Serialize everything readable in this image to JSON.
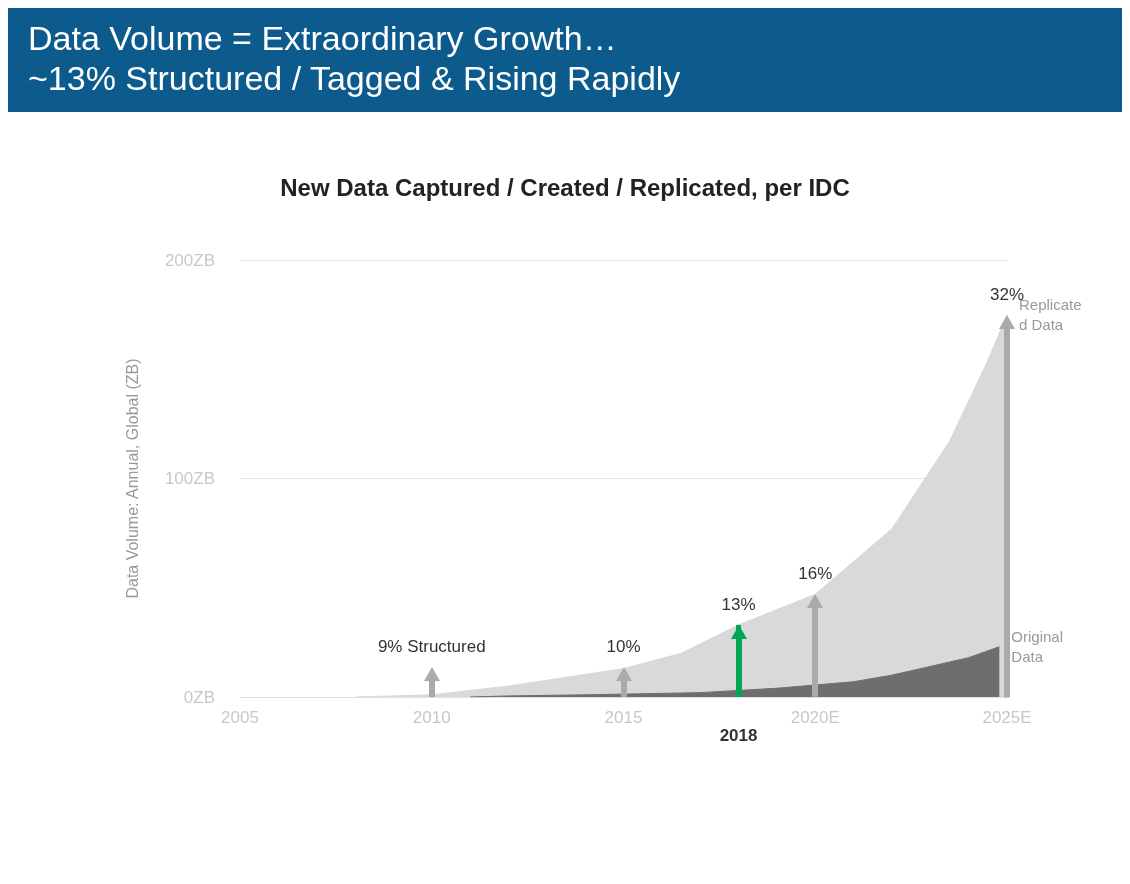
{
  "chart_data": {
    "type": "area",
    "title": "Data Volume = Extraordinary Growth…\n~13% Structured / Tagged & Rising Rapidly",
    "subtitle": "New Data Captured / Created / Replicated, per IDC",
    "ylabel": "Data Volume: Annual, Global (ZB)",
    "series": [
      {
        "name": "Replicated Data",
        "color": "#d9d9d9",
        "x": [
          2008,
          2010,
          2012,
          2013.5,
          2015,
          2016.5,
          2018,
          2019,
          2020,
          2021,
          2022,
          2023.5,
          2024.5,
          2025
        ],
        "values": [
          0,
          1,
          5,
          9,
          13,
          20,
          33,
          40,
          47,
          62,
          77,
          117,
          154,
          175
        ]
      },
      {
        "name": "Original Data",
        "color": "#6e6e6e",
        "x": [
          2011,
          2012,
          2014,
          2017,
          2019,
          2021,
          2022,
          2023,
          2024,
          2024.8
        ],
        "values": [
          0,
          0.5,
          1,
          2,
          4,
          7,
          10,
          14,
          18,
          23
        ]
      }
    ],
    "annotations": [
      {
        "text": "9% Structured",
        "x": 2010,
        "y": 1
      },
      {
        "text": "10%",
        "x": 2015,
        "y": 13
      },
      {
        "text": "13%",
        "x": 2018,
        "y": 33
      },
      {
        "text": "16%",
        "x": 2020,
        "y": 47
      },
      {
        "text": "32%",
        "x": 2025,
        "y": 175
      }
    ],
    "ref_lines": [
      {
        "axis": "x",
        "value": 2018,
        "label": "2018",
        "color": "#00a651"
      }
    ],
    "xlim": [
      2005,
      2025
    ],
    "xticks": [
      2005,
      2010,
      2015,
      {
        "value": 2020,
        "label": "2020E"
      },
      {
        "value": 2025,
        "label": "2025E"
      }
    ],
    "ylim": [
      0,
      200
    ],
    "yticks": [
      {
        "value": 0,
        "label": "0ZB"
      },
      {
        "value": 100,
        "label": "100ZB"
      },
      {
        "value": 200,
        "label": "200ZB"
      }
    ],
    "grid": "y",
    "legend": false,
    "marker": "none"
  }
}
